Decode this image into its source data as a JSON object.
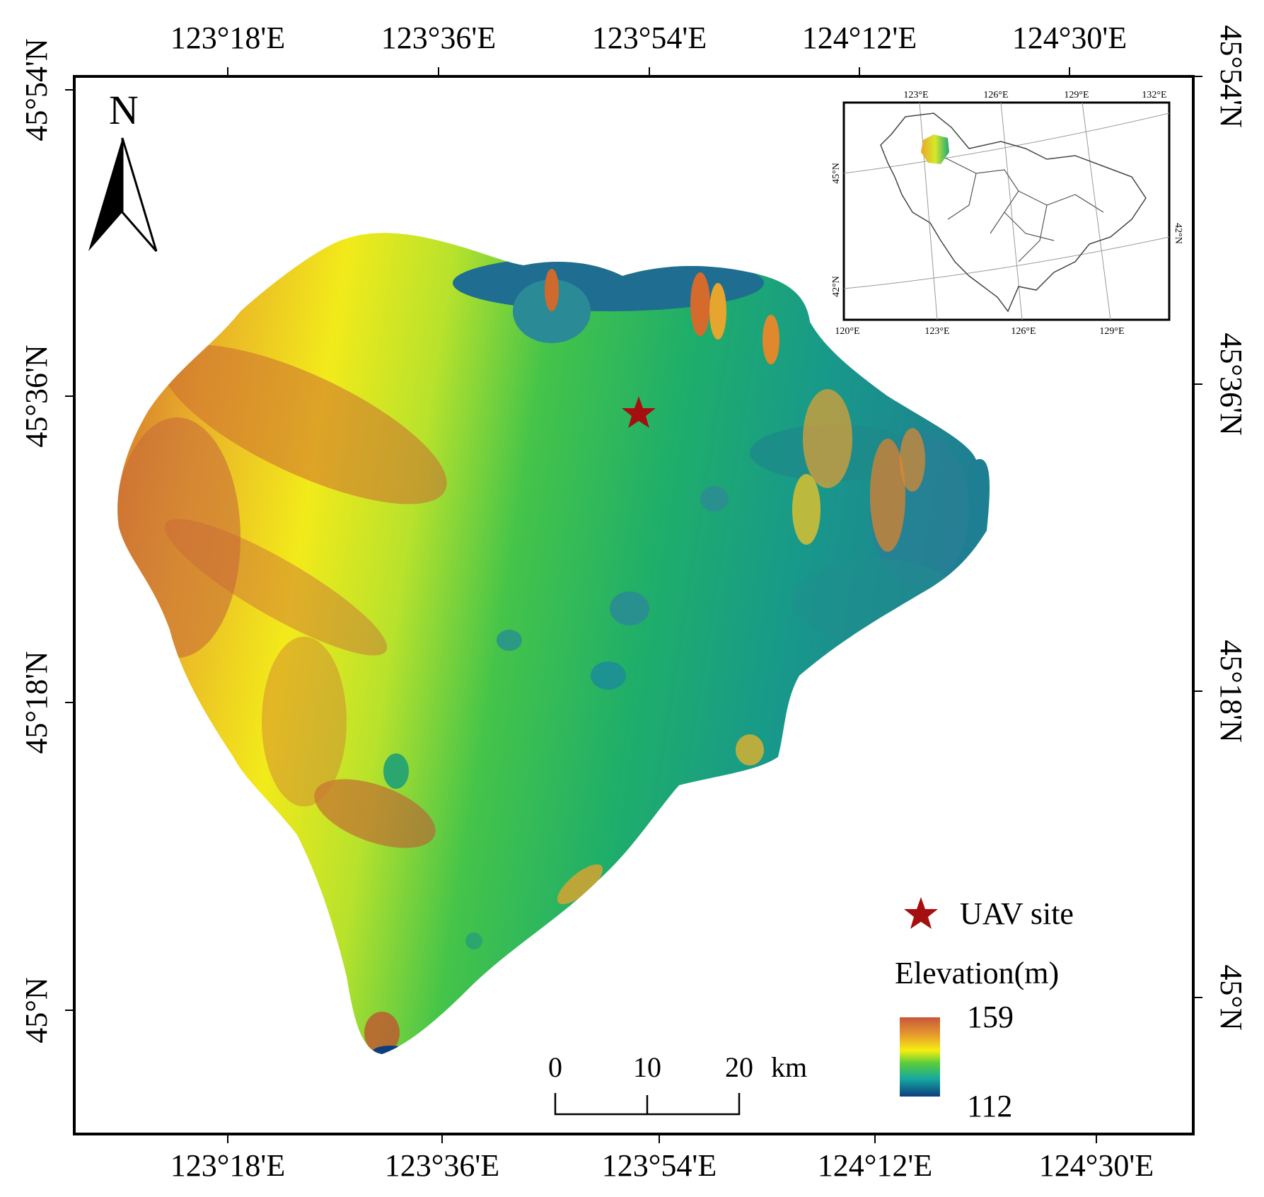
{
  "map": {
    "top_axis_labels": [
      "123°18'E",
      "123°36'E",
      "123°54'E",
      "124°12'E",
      "124°30'E"
    ],
    "bottom_axis_labels": [
      "123°18'E",
      "123°36'E",
      "123°54'E",
      "124°12'E",
      "124°30'E"
    ],
    "left_axis_labels": [
      "45°54'N",
      "45°36'N",
      "45°18'N",
      "45°N"
    ],
    "right_axis_labels": [
      "45°54'N",
      "45°36'N",
      "45°18'N",
      "45°N"
    ],
    "north_arrow_label": "N",
    "scale_bar": {
      "ticks": [
        "0",
        "10",
        "20"
      ],
      "unit": "km"
    },
    "legend": {
      "site_label": "UAV site",
      "site_symbol_color": "#a50f0f",
      "elevation_title": "Elevation(m)",
      "elevation_max": "159",
      "elevation_min": "112",
      "ramp_colors": [
        "#c8563a",
        "#e69a2f",
        "#f5ef10",
        "#58cc3c",
        "#15a7a0",
        "#0d3d7e"
      ]
    },
    "inset": {
      "top_labels": [
        "123°E",
        "126°E",
        "129°E",
        "132°E"
      ],
      "bottom_labels": [
        "120°E",
        "123°E",
        "126°E",
        "129°E"
      ],
      "left_labels": [
        "45°N",
        "42°N"
      ],
      "right_labels": [
        "42°N"
      ]
    },
    "colors": {
      "frame": "#000000",
      "low_elevation": "#1e6e90",
      "mid_elevation": "#27b05b",
      "high_elevation": "#c8563a"
    }
  }
}
